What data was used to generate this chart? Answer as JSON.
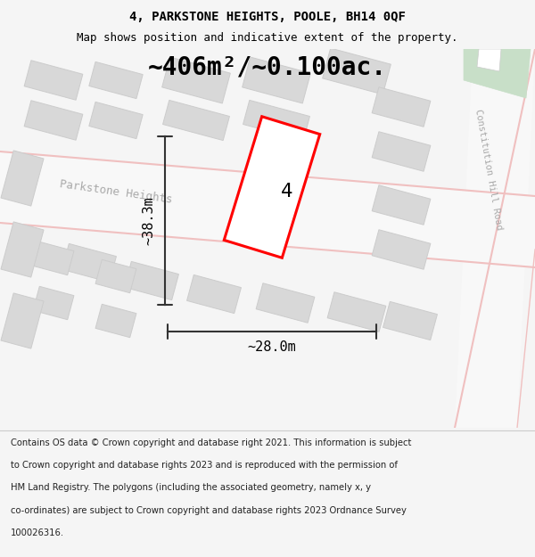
{
  "title": "4, PARKSTONE HEIGHTS, POOLE, BH14 0QF",
  "subtitle": "Map shows position and indicative extent of the property.",
  "area_label": "~406m²/~0.100ac.",
  "plot_number": "4",
  "dim_width": "~28.0m",
  "dim_height": "~38.3m",
  "street_label_1": "Parkstone Heights",
  "street_label_2": "Constitution Hill Road",
  "footer_lines": [
    "Contains OS data © Crown copyright and database right 2021. This information is subject",
    "to Crown copyright and database rights 2023 and is reproduced with the permission of",
    "HM Land Registry. The polygons (including the associated geometry, namely x, y",
    "co-ordinates) are subject to Crown copyright and database rights 2023 Ordnance Survey",
    "100026316."
  ],
  "bg_color": "#f5f5f5",
  "map_bg": "#ffffff",
  "plot_color": "#ff0000",
  "building_fill": "#d8d8d8",
  "building_edge": "#cccccc",
  "road_color": "#f0c0c0",
  "road_fill": "#f8f8f8",
  "green_fill": "#c8dfc8",
  "title_fontsize": 10,
  "subtitle_fontsize": 9,
  "area_fontsize": 20,
  "dim_fontsize": 11,
  "footer_fontsize": 7.2
}
